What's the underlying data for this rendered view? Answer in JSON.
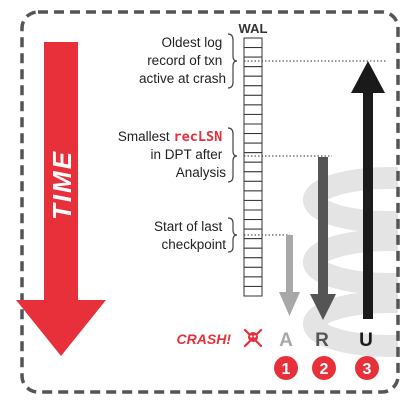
{
  "wal": {
    "label": "WAL",
    "records": 27
  },
  "time": {
    "label": "TIME",
    "color": "#e8303a"
  },
  "annotations": {
    "oldest": {
      "line1": "Oldest log",
      "line2": "record of txn",
      "line3": "active at crash"
    },
    "smallest": {
      "line1_prefix": "Smallest ",
      "line1_code": "recLSN",
      "line2": "in DPT after",
      "line3": "Analysis"
    },
    "checkpoint": {
      "line1": "Start of last",
      "line2": "checkpoint"
    }
  },
  "crash": {
    "label": "CRASH!",
    "color": "#e8303a"
  },
  "phases": [
    {
      "letter": "A",
      "number": "1",
      "color": "#a8a8a8"
    },
    {
      "letter": "R",
      "number": "2",
      "color": "#555555"
    },
    {
      "letter": "U",
      "number": "3",
      "color": "#1a1a1a"
    }
  ],
  "colors": {
    "accent": "#e8303a",
    "border": "#555555",
    "watermark": "#e4e4e4"
  }
}
